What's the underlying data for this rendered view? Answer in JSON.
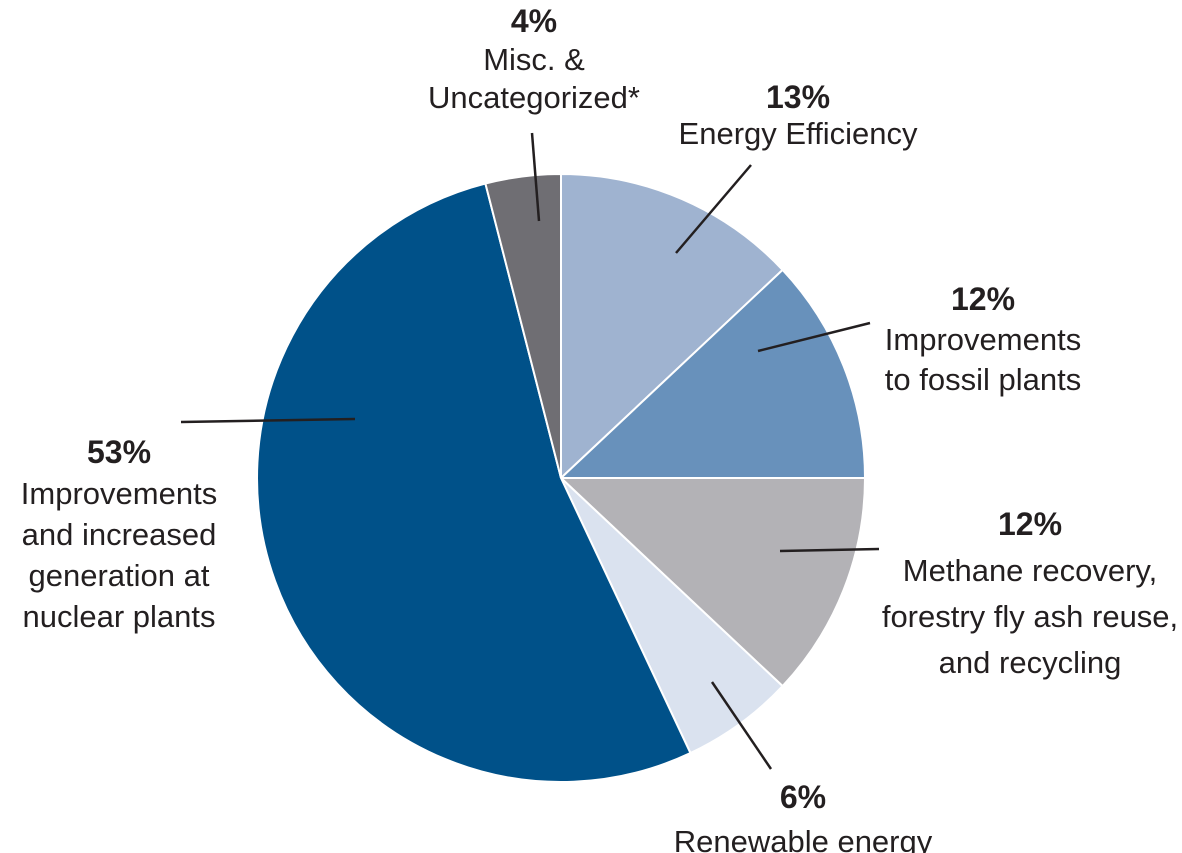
{
  "chart_data": {
    "type": "pie",
    "title": "",
    "start_angle_deg": 0,
    "direction": "clockwise",
    "slices": [
      {
        "category": "Energy Efficiency",
        "value": 13,
        "percent_label": "13%",
        "label_lines": [
          "Energy Efficiency"
        ],
        "color": "#9fb3d0"
      },
      {
        "category": "Improvements to fossil plants",
        "value": 12,
        "percent_label": "12%",
        "label_lines": [
          "Improvements",
          "to fossil plants"
        ],
        "color": "#6891bb"
      },
      {
        "category": "Methane recovery, forestry fly ash reuse, and recycling",
        "value": 12,
        "percent_label": "12%",
        "label_lines": [
          "Methane recovery,",
          "forestry fly ash reuse,",
          "and recycling"
        ],
        "color": "#b3b2b6"
      },
      {
        "category": "Renewable energy",
        "value": 6,
        "percent_label": "6%",
        "label_lines": [
          "Renewable energy"
        ],
        "color": "#dae2ef"
      },
      {
        "category": "Improvements and increased generation at nuclear plants",
        "value": 53,
        "percent_label": "53%",
        "label_lines": [
          "Improvements",
          "and increased",
          "generation at",
          "nuclear plants"
        ],
        "color": "#005189"
      },
      {
        "category": "Misc. & Uncategorized*",
        "value": 4,
        "percent_label": "4%",
        "label_lines": [
          "Misc. &",
          "Uncategorized*"
        ],
        "color": "#6f6e73"
      }
    ]
  }
}
